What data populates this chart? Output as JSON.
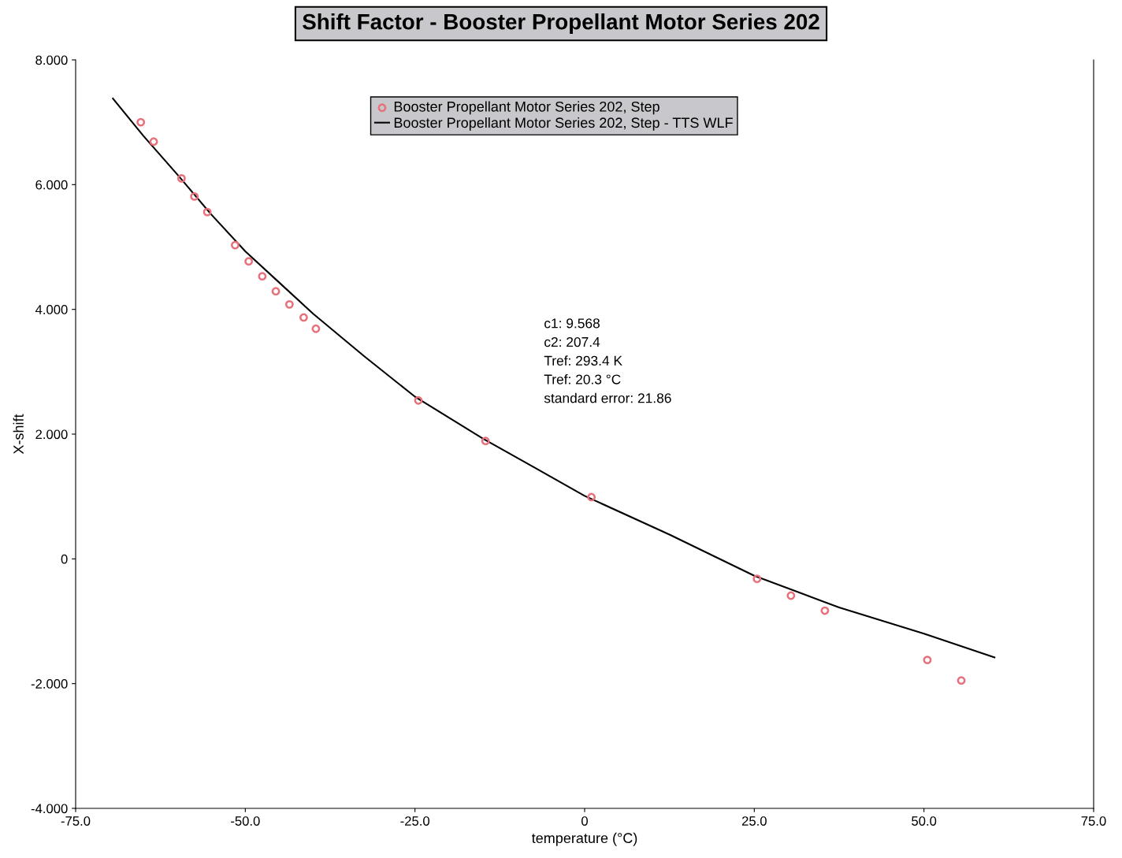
{
  "chart_data": {
    "type": "scatter",
    "title": "Shift Factor - Booster Propellant Motor Series 202",
    "xlabel": "temperature (°C)",
    "ylabel": "X-shift",
    "xlim": [
      -75,
      75
    ],
    "xticks": [
      {
        "value": -75,
        "label": "-75.0"
      },
      {
        "value": -50,
        "label": "-50.0"
      },
      {
        "value": -25,
        "label": "-25.0"
      },
      {
        "value": 0,
        "label": "0"
      },
      {
        "value": 25,
        "label": "25.0"
      },
      {
        "value": 50,
        "label": "50.0"
      },
      {
        "value": 75,
        "label": "75.0"
      }
    ],
    "ylim": [
      -4,
      8
    ],
    "yticks": [
      {
        "value": -4,
        "label": "-4.000"
      },
      {
        "value": -2,
        "label": "-2.000"
      },
      {
        "value": 0,
        "label": "0"
      },
      {
        "value": 2,
        "label": "2.000"
      },
      {
        "value": 4,
        "label": "4.000"
      },
      {
        "value": 6,
        "label": "6.000"
      },
      {
        "value": 8,
        "label": "8.000"
      }
    ],
    "grid": false,
    "legend": "top",
    "series": [
      {
        "name": "Booster Propellant Motor Series 202, Step",
        "marker": "circle",
        "color": "#e8707a",
        "x": [
          -65.4,
          -63.5,
          -59.4,
          -57.5,
          -55.6,
          -51.5,
          -49.5,
          -47.5,
          -45.5,
          -43.5,
          -41.4,
          -39.6,
          -24.5,
          -14.6,
          1.0,
          25.4,
          30.4,
          35.4,
          50.5,
          55.5
        ],
        "values": [
          7.0,
          6.69,
          6.1,
          5.81,
          5.56,
          5.03,
          4.77,
          4.53,
          4.29,
          4.08,
          3.87,
          3.69,
          2.54,
          1.89,
          0.99,
          -0.32,
          -0.59,
          -0.83,
          -1.62,
          -1.95
        ]
      },
      {
        "name": "Booster Propellant Motor Series 202, Step - TTS WLF",
        "type": "line",
        "marker": "none",
        "line_style": "solid",
        "color": "#000000",
        "x": [
          -69.5,
          -65,
          -60,
          -55,
          -50,
          -45,
          -40,
          -32.5,
          -25,
          -15,
          -7.5,
          0,
          12.5,
          25,
          37.5,
          50,
          60.4
        ],
        "values": [
          7.38,
          6.78,
          6.16,
          5.52,
          4.93,
          4.43,
          3.93,
          3.25,
          2.6,
          1.93,
          1.47,
          1.01,
          0.39,
          -0.27,
          -0.78,
          -1.2,
          -1.58
        ]
      }
    ],
    "annotations": [
      "c1: 9.568\nc2: 207.4\nTref: 293.4 K\nTref: 20.3 °C\nstandard error: 21.86"
    ]
  }
}
